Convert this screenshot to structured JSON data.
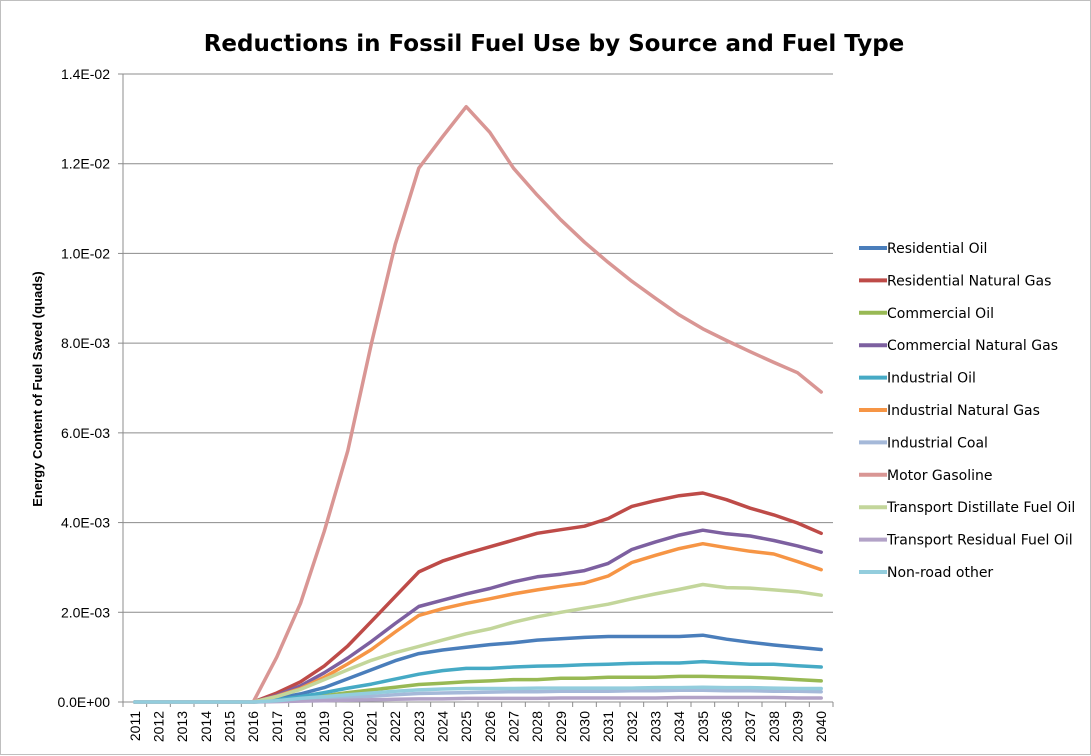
{
  "chart_data": {
    "type": "line",
    "title": "Reductions in Fossil Fuel Use by Source and Fuel Type",
    "xlabel": "",
    "ylabel": "Energy Content of Fuel Saved (quads)",
    "ylim": [
      0,
      0.014
    ],
    "y_ticks": [
      "0.0E+00",
      "2.0E-03",
      "4.0E-03",
      "6.0E-03",
      "8.0E-03",
      "1.0E-02",
      "1.2E-02",
      "1.4E-02"
    ],
    "y_tick_values": [
      0,
      0.002,
      0.004,
      0.006,
      0.008,
      0.01,
      0.012,
      0.014
    ],
    "grid": true,
    "legend_position": "right",
    "categories": [
      "2011",
      "2012",
      "2013",
      "2014",
      "2015",
      "2016",
      "2017",
      "2018",
      "2019",
      "2020",
      "2021",
      "2022",
      "2023",
      "2024",
      "2025",
      "2026",
      "2027",
      "2028",
      "2029",
      "2030",
      "2031",
      "2032",
      "2033",
      "2034",
      "2035",
      "2036",
      "2037",
      "2038",
      "2039",
      "2040"
    ],
    "series": [
      {
        "name": "Residential Oil",
        "color": "#4a7ebb",
        "values": [
          0,
          0,
          0,
          0,
          0,
          0,
          8e-05,
          0.00018,
          0.00032,
          0.00052,
          0.00072,
          0.00092,
          0.00108,
          0.00116,
          0.00122,
          0.00128,
          0.00132,
          0.00138,
          0.00141,
          0.00144,
          0.00146,
          0.00146,
          0.00146,
          0.00146,
          0.00149,
          0.0014,
          0.00133,
          0.00127,
          0.00122,
          0.00117
        ]
      },
      {
        "name": "Residential Natural Gas",
        "color": "#be4b48",
        "values": [
          0,
          0,
          0,
          0,
          0,
          0,
          0.0002,
          0.00045,
          0.0008,
          0.00125,
          0.0018,
          0.00235,
          0.0029,
          0.00314,
          0.00331,
          0.00346,
          0.00361,
          0.00376,
          0.00384,
          0.00392,
          0.00409,
          0.00436,
          0.00449,
          0.0046,
          0.00466,
          0.00451,
          0.00432,
          0.00417,
          0.00399,
          0.00376
        ]
      },
      {
        "name": "Commercial Oil",
        "color": "#98b954",
        "values": [
          0,
          0,
          0,
          0,
          0,
          0,
          3e-05,
          8e-05,
          0.00014,
          0.00021,
          0.00027,
          0.00033,
          0.00039,
          0.00042,
          0.00045,
          0.00047,
          0.0005,
          0.0005,
          0.00053,
          0.00053,
          0.00055,
          0.00055,
          0.00055,
          0.00057,
          0.00057,
          0.00056,
          0.00055,
          0.00053,
          0.0005,
          0.00047
        ]
      },
      {
        "name": "Commercial Natural Gas",
        "color": "#7d60a0",
        "values": [
          0,
          0,
          0,
          0,
          0,
          0,
          0.00015,
          0.00036,
          0.00065,
          0.00098,
          0.00135,
          0.00175,
          0.00213,
          0.00227,
          0.00241,
          0.00253,
          0.00268,
          0.00279,
          0.00285,
          0.00293,
          0.00309,
          0.0034,
          0.00357,
          0.00372,
          0.00383,
          0.00375,
          0.0037,
          0.0036,
          0.00348,
          0.00334
        ]
      },
      {
        "name": "Industrial Oil",
        "color": "#46aac5",
        "values": [
          0,
          0,
          0,
          0,
          0,
          0,
          5e-05,
          0.00012,
          0.00021,
          0.00031,
          0.0004,
          0.00051,
          0.00062,
          0.0007,
          0.00075,
          0.00075,
          0.00078,
          0.0008,
          0.00081,
          0.00083,
          0.00084,
          0.00086,
          0.00087,
          0.00087,
          0.0009,
          0.00087,
          0.00084,
          0.00084,
          0.00081,
          0.00078
        ]
      },
      {
        "name": "Industrial Natural Gas",
        "color": "#f69545",
        "values": [
          0,
          0,
          0,
          0,
          0,
          0,
          0.00013,
          0.0003,
          0.00055,
          0.00085,
          0.00117,
          0.00156,
          0.00193,
          0.00208,
          0.0022,
          0.0023,
          0.00241,
          0.0025,
          0.00258,
          0.00265,
          0.00281,
          0.00311,
          0.00327,
          0.00342,
          0.00353,
          0.00344,
          0.00336,
          0.0033,
          0.00313,
          0.00295
        ]
      },
      {
        "name": "Industrial Coal",
        "color": "#a5b9d9",
        "values": [
          0,
          0,
          0,
          0,
          0,
          0,
          2e-05,
          4e-05,
          7e-05,
          0.0001,
          0.00013,
          0.00016,
          0.00019,
          0.0002,
          0.00021,
          0.00022,
          0.00023,
          0.00023,
          0.00024,
          0.00024,
          0.00024,
          0.00025,
          0.00025,
          0.00026,
          0.00026,
          0.00025,
          0.00025,
          0.00024,
          0.00024,
          0.00023
        ]
      },
      {
        "name": "Motor Gasoline",
        "color": "#d99694",
        "values": [
          0,
          0,
          0,
          0,
          0,
          0,
          0.001,
          0.0022,
          0.0038,
          0.0056,
          0.008,
          0.0102,
          0.0119,
          0.0126,
          0.01327,
          0.0127,
          0.0119,
          0.0113,
          0.01075,
          0.01025,
          0.0098,
          0.00938,
          0.009,
          0.00863,
          0.00832,
          0.00806,
          0.00781,
          0.00757,
          0.00734,
          0.00691
        ]
      },
      {
        "name": "Transport Distillate Fuel Oil",
        "color": "#c3d69b",
        "values": [
          0,
          0,
          0,
          0,
          0,
          0,
          0.00012,
          0.00028,
          0.0005,
          0.00072,
          0.00093,
          0.0011,
          0.00124,
          0.00138,
          0.00152,
          0.00163,
          0.00178,
          0.0019,
          0.002,
          0.00209,
          0.00218,
          0.0023,
          0.00241,
          0.00251,
          0.00262,
          0.00255,
          0.00254,
          0.0025,
          0.00246,
          0.00238
        ]
      },
      {
        "name": "Transport Residual Fuel Oil",
        "color": "#b2a2c7",
        "values": [
          0,
          0,
          0,
          0,
          0,
          0,
          1e-05,
          2e-05,
          3e-05,
          4e-05,
          5e-05,
          6e-05,
          7e-05,
          7e-05,
          8e-05,
          8e-05,
          8e-05,
          8e-05,
          9e-05,
          9e-05,
          9e-05,
          9e-05,
          9e-05,
          0.0001,
          0.0001,
          0.0001,
          0.0001,
          0.0001,
          9e-05,
          9e-05
        ]
      },
      {
        "name": "Non-road other",
        "color": "#93cddd",
        "values": [
          0,
          0,
          0,
          0,
          0,
          0,
          3e-05,
          8e-05,
          0.00012,
          0.00016,
          0.0002,
          0.00024,
          0.00027,
          0.00029,
          0.0003,
          0.0003,
          0.0003,
          0.00031,
          0.00031,
          0.00031,
          0.00031,
          0.00031,
          0.00032,
          0.00032,
          0.00033,
          0.00032,
          0.00032,
          0.00031,
          0.0003,
          0.0003
        ]
      }
    ]
  }
}
